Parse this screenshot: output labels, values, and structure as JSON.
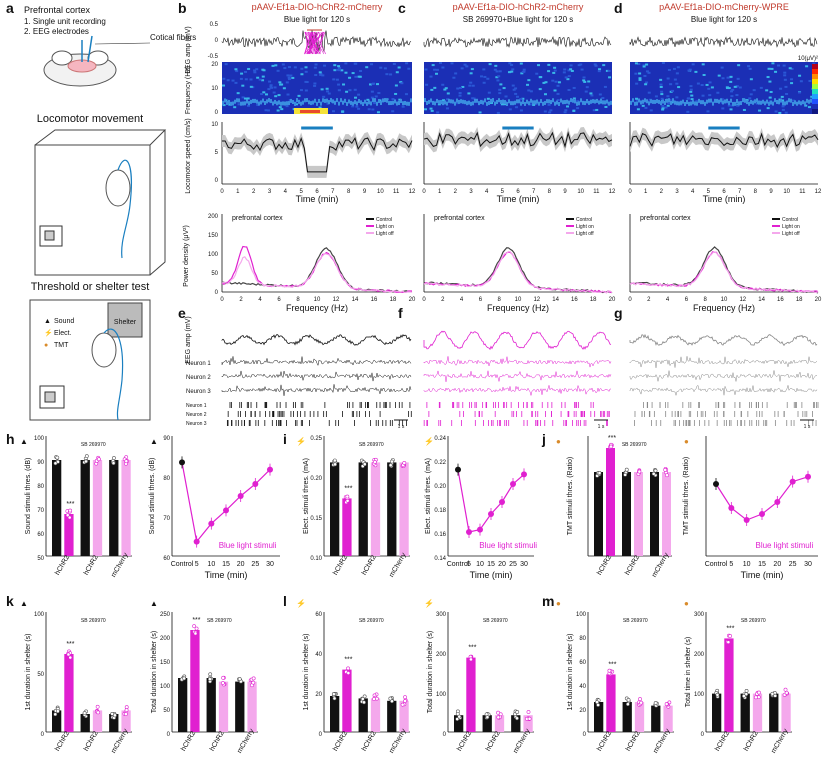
{
  "panel_letters": [
    "a",
    "b",
    "c",
    "d",
    "e",
    "f",
    "g",
    "h",
    "i",
    "j",
    "k",
    "l",
    "m"
  ],
  "panel_a": {
    "site": "Prefrontal cortex",
    "items": [
      "1. Single unit recording",
      "2. EEG electrodes"
    ],
    "fiber_label": "Cotical fibers",
    "locomotor_title": "Locomotor movement",
    "threshold_title": "Threshold or shelter test",
    "shelter_label": "Shelter",
    "legend": [
      "Sound",
      "Elect.",
      "TMT"
    ]
  },
  "panel_b": {
    "title": "pAAV-Ef1a-DIO-hChR2-mCherry",
    "stim": "Blue light for 120 s"
  },
  "panel_c": {
    "title": "pAAV-Ef1a-DIO-hChR2-mCherry",
    "stim": "SB 269970+Blue light for 120 s"
  },
  "panel_d": {
    "title": "pAAV-Ef1a-DIO-mCherry-WPRE",
    "stim": "Blue light for 120 s"
  },
  "eeg_axis": {
    "label": "EEG amp (mV)",
    "ticks": [
      "0.5",
      "0",
      "-0.5"
    ]
  },
  "spectro_axis": {
    "label": "Frequency (Hz)",
    "ticks": [
      "20",
      "10",
      "0"
    ],
    "colorbar": "10(μV)²"
  },
  "speed_axis": {
    "label": "Locomotor speed (cm/s)",
    "ticks": [
      "10",
      "5",
      "0"
    ],
    "xlabel": "Time (min)",
    "xticks": [
      "0",
      "1",
      "2",
      "3",
      "4",
      "5",
      "6",
      "7",
      "8",
      "9",
      "10",
      "11",
      "12"
    ]
  },
  "power_axis": {
    "label": "Power density (μV²)",
    "ticks": [
      "200",
      "150",
      "100",
      "50",
      "0"
    ],
    "xlabel": "Frequency (Hz)",
    "xticks": [
      "0",
      "2",
      "4",
      "6",
      "8",
      "10",
      "12",
      "14",
      "16",
      "18",
      "20"
    ],
    "region": "prefrontal cortex",
    "legend": [
      "Control",
      "Light on",
      "Light off"
    ]
  },
  "raster_labels": {
    "eeg": "EEG amp (mV)",
    "ticks": [
      "0.5",
      "0"
    ],
    "neurons": [
      "Neuron 1",
      "Neuron 2",
      "Neuron 3"
    ],
    "scale": "1 s"
  },
  "bars": {
    "groups": [
      "hChR2",
      "hChR2",
      "mCherry"
    ],
    "sb_label": "SB 269970",
    "blue_label": "Blue light stimuli",
    "time_xlabel": "Time (min)",
    "time_ticks": [
      "Control",
      "5",
      "10",
      "15",
      "20",
      "25",
      "30"
    ],
    "significance": [
      "***",
      "ns"
    ]
  },
  "panel_h": {
    "ylabel": "Sound stimuli thres. (dB)",
    "yticks": [
      "100",
      "90",
      "80",
      "70",
      "60",
      "50"
    ],
    "ylabel2": "Sound stimuli thres. (dB)",
    "yticks2": [
      "90",
      "80",
      "70",
      "60"
    ]
  },
  "panel_i": {
    "ylabel": "Elect. stimuli thres. (mA)",
    "yticks": [
      "0.25",
      "0.20",
      "0.15",
      "0.10"
    ],
    "ylabel2": "Elect. stimuli thres. (mA)",
    "yticks2": [
      "0.24",
      "0.22",
      "0.20",
      "0.18",
      "0.16",
      "0.14"
    ]
  },
  "panel_j": {
    "ylabel": "TMT stimuli thres. (Ratio)",
    "ylabel2": "TMT stimuli thres. (Ratio)"
  },
  "panel_k": {
    "ylabel": "1st duration in shelter (s)",
    "yticks": [
      "100",
      "50",
      "0"
    ],
    "ylabel2": "Total duration in shelter (s)",
    "yticks2": [
      "250",
      "200",
      "150",
      "100",
      "50",
      "0"
    ]
  },
  "panel_l": {
    "ylabel": "1st duration in shelter (s)",
    "yticks": [
      "60",
      "40",
      "20",
      "0"
    ],
    "ylabel2": "Total duration in shelter (s)",
    "yticks2": [
      "300",
      "200",
      "100",
      "0"
    ]
  },
  "panel_m": {
    "ylabel": "1st duration in shelter (s)",
    "yticks": [
      "100",
      "80",
      "60",
      "40",
      "20",
      "0"
    ],
    "ylabel2": "Total time in shelter (s)",
    "yticks2": [
      "300",
      "200",
      "100",
      "0"
    ]
  },
  "colors": {
    "magenta": "#e020d0",
    "light_magenta": "#f4a8ec",
    "black": "#111111",
    "blue": "#1a7fc0",
    "red": "#c0392b"
  }
}
